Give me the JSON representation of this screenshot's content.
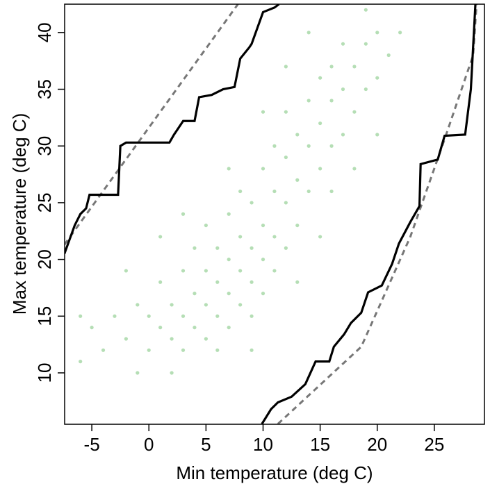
{
  "chart_data": {
    "type": "scatter",
    "xlabel": "Min temperature (deg C)",
    "ylabel": "Max temperature (deg C)",
    "xlim": [
      -7.38,
      29.39
    ],
    "ylim": [
      5.47,
      42.5
    ],
    "xticks": [
      -5,
      0,
      5,
      10,
      15,
      20,
      25
    ],
    "yticks": [
      10,
      15,
      20,
      25,
      30,
      35,
      40
    ],
    "series": [
      {
        "color": "#2ca02c",
        "x": [
          -5,
          -4,
          -3,
          -2,
          -1,
          0,
          0,
          1,
          1,
          2,
          2,
          3,
          3,
          3,
          4,
          4,
          4,
          5,
          5,
          5,
          5,
          6,
          6,
          6,
          7,
          7,
          7,
          7,
          8,
          8,
          8,
          8,
          9,
          9,
          9,
          9,
          10,
          10,
          10,
          10,
          11,
          11,
          11,
          11,
          12,
          12,
          12,
          12,
          13,
          13,
          13,
          14,
          14,
          14,
          15,
          15,
          15,
          16,
          16,
          16,
          17,
          17,
          17,
          18,
          18,
          19,
          19,
          20,
          20,
          21,
          -6,
          -6,
          -1,
          2,
          6,
          1,
          3,
          9,
          13,
          15,
          16,
          18,
          20,
          10,
          12,
          14,
          7,
          -2,
          22,
          19
        ],
        "values": [
          14,
          12,
          15,
          13,
          16,
          12,
          15,
          14,
          18,
          13,
          16,
          12,
          15,
          19,
          14,
          17,
          21,
          13,
          16,
          19,
          23,
          15,
          18,
          21,
          14,
          17,
          20,
          24,
          16,
          19,
          22,
          26,
          15,
          18,
          21,
          25,
          17,
          20,
          23,
          28,
          19,
          22,
          26,
          30,
          21,
          25,
          29,
          33,
          23,
          27,
          31,
          26,
          30,
          34,
          28,
          32,
          36,
          30,
          34,
          37,
          31,
          35,
          39,
          33,
          37,
          35,
          39,
          36,
          40,
          38,
          11,
          15,
          10,
          10,
          12,
          22,
          24,
          12,
          18,
          22,
          26,
          28,
          31,
          33,
          37,
          40,
          28,
          19,
          40,
          42
        ]
      }
    ],
    "lines": [
      {
        "color": "#777777",
        "style": "dashed",
        "x": [
          -7.4,
          7.8
        ],
        "values": [
          21.3,
          42.5
        ]
      },
      {
        "color": "#777777",
        "style": "dashed",
        "x": [
          11.3,
          18.6,
          22.9,
          25.9,
          28.4,
          28.7
        ],
        "values": [
          5.5,
          12.3,
          22,
          30.6,
          38,
          42.5
        ]
      },
      {
        "color": "#000000",
        "style": "solid",
        "x": [
          -7.4,
          -6.5,
          -6,
          -5.5,
          -5.2,
          -2.7,
          -2.5,
          -2,
          1.8,
          2.2,
          3,
          4,
          4.4,
          5.5,
          6.5,
          7.5,
          8,
          8.8,
          9,
          10,
          11,
          11.4
        ],
        "values": [
          20.5,
          23,
          24,
          24.5,
          25.7,
          25.7,
          30,
          30.3,
          30.3,
          31,
          32.2,
          32.2,
          34.3,
          34.5,
          35,
          35.2,
          37.7,
          38.7,
          39,
          41.8,
          42.2,
          42.5
        ]
      },
      {
        "color": "#000000",
        "style": "solid",
        "x": [
          9.9,
          10.7,
          11.3,
          12.5,
          13.7,
          14.6,
          15.8,
          16.2,
          17.1,
          17.7,
          18.6,
          19.2,
          20.4,
          21.3,
          21.9,
          22.9,
          23.7,
          23.8,
          25.3,
          25.9,
          27.7,
          28.2,
          28.6
        ],
        "values": [
          5.5,
          6.8,
          7.4,
          7.9,
          9,
          11,
          11,
          12.3,
          13.4,
          14.4,
          15.3,
          17.1,
          17.7,
          19.6,
          21.4,
          23.3,
          24.7,
          28.4,
          28.8,
          30.9,
          31,
          35,
          42.5
        ]
      }
    ]
  }
}
